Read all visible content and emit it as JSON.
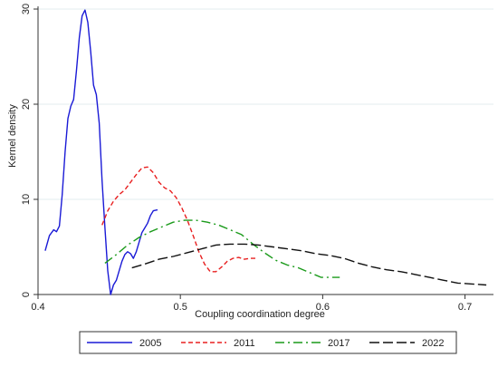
{
  "chart_data": {
    "type": "line",
    "title": "",
    "xlabel": "Coupling coordination degree",
    "ylabel": "Kernel density",
    "xlim": [
      0.4,
      0.72
    ],
    "ylim": [
      0,
      30
    ],
    "xticks": [
      0.4,
      0.5,
      0.6,
      0.7
    ],
    "xtick_labels": [
      "0.4",
      "0.5",
      "0.6",
      "0.7"
    ],
    "yticks": [
      0,
      10,
      20,
      30
    ],
    "ytick_labels": [
      "0",
      "10",
      "20",
      "30"
    ],
    "grid": "horizontal",
    "legend_position": "bottom",
    "series": [
      {
        "name": "2005",
        "color": "#1a1ad6",
        "dash": "solid",
        "x": [
          0.405,
          0.408,
          0.411,
          0.413,
          0.415,
          0.417,
          0.419,
          0.421,
          0.423,
          0.425,
          0.427,
          0.429,
          0.431,
          0.433,
          0.435,
          0.437,
          0.439,
          0.441,
          0.443,
          0.445,
          0.447,
          0.449,
          0.451,
          0.453,
          0.455,
          0.457,
          0.459,
          0.461,
          0.463,
          0.465,
          0.467,
          0.469,
          0.471,
          0.473,
          0.475,
          0.477,
          0.479,
          0.481,
          0.484
        ],
        "y": [
          4.6,
          6.2,
          6.8,
          6.6,
          7.2,
          10.5,
          15.0,
          18.5,
          19.8,
          20.5,
          23.5,
          27.0,
          29.3,
          29.9,
          28.6,
          25.5,
          22.0,
          21.0,
          18.0,
          12.0,
          7.0,
          2.5,
          0.0,
          1.0,
          1.5,
          2.5,
          3.5,
          4.2,
          4.5,
          4.3,
          3.8,
          4.5,
          5.5,
          6.5,
          7.0,
          7.5,
          8.3,
          8.8,
          8.9
        ]
      },
      {
        "name": "2011",
        "color": "#e82020",
        "dash": "short",
        "x": [
          0.445,
          0.449,
          0.453,
          0.457,
          0.461,
          0.465,
          0.469,
          0.473,
          0.477,
          0.481,
          0.485,
          0.489,
          0.493,
          0.497,
          0.501,
          0.505,
          0.509,
          0.513,
          0.517,
          0.521,
          0.525,
          0.529,
          0.533,
          0.537,
          0.541,
          0.545,
          0.549,
          0.553
        ],
        "y": [
          7.3,
          8.8,
          9.8,
          10.5,
          11.0,
          11.8,
          12.6,
          13.3,
          13.4,
          12.8,
          11.8,
          11.2,
          10.9,
          10.2,
          9.1,
          7.8,
          6.2,
          4.5,
          3.2,
          2.4,
          2.4,
          2.9,
          3.5,
          3.8,
          3.9,
          3.7,
          3.8,
          3.8
        ]
      },
      {
        "name": "2017",
        "color": "#1a9a1a",
        "dash": "dashdot",
        "x": [
          0.447,
          0.455,
          0.463,
          0.471,
          0.479,
          0.487,
          0.495,
          0.503,
          0.511,
          0.519,
          0.527,
          0.535,
          0.543,
          0.551,
          0.559,
          0.567,
          0.575,
          0.583,
          0.591,
          0.599,
          0.605,
          0.612
        ],
        "y": [
          3.3,
          4.2,
          5.2,
          6.0,
          6.6,
          7.1,
          7.6,
          7.8,
          7.8,
          7.6,
          7.3,
          6.8,
          6.3,
          5.3,
          4.4,
          3.6,
          3.1,
          2.8,
          2.3,
          1.8,
          1.8,
          1.8
        ]
      },
      {
        "name": "2022",
        "color": "#111111",
        "dash": "long",
        "x": [
          0.466,
          0.475,
          0.485,
          0.495,
          0.505,
          0.515,
          0.525,
          0.535,
          0.545,
          0.555,
          0.565,
          0.575,
          0.585,
          0.595,
          0.605,
          0.615,
          0.625,
          0.635,
          0.645,
          0.655,
          0.665,
          0.675,
          0.685,
          0.695,
          0.705,
          0.715
        ],
        "y": [
          2.8,
          3.2,
          3.7,
          4.0,
          4.4,
          4.8,
          5.2,
          5.3,
          5.3,
          5.2,
          5.0,
          4.8,
          4.6,
          4.3,
          4.1,
          3.8,
          3.3,
          2.9,
          2.6,
          2.4,
          2.1,
          1.8,
          1.5,
          1.2,
          1.1,
          1.0
        ]
      }
    ]
  }
}
